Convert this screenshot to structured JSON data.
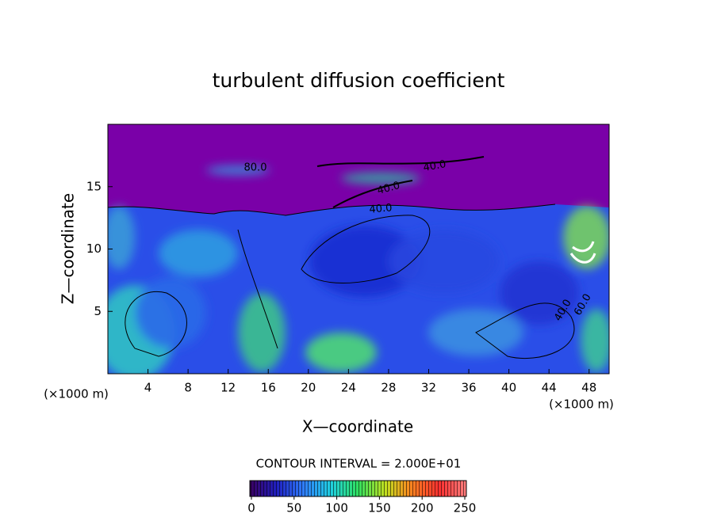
{
  "chart_data": {
    "type": "contour",
    "title": "turbulent diffusion coefficient",
    "x_label": "X—coordinate",
    "y_label": "Z—coordinate",
    "x_unit": "(×1000 m)",
    "y_unit": "(×1000 m)",
    "xlim": [
      0,
      50
    ],
    "xticks": [
      4,
      8,
      12,
      16,
      20,
      24,
      28,
      32,
      36,
      40,
      44,
      48
    ],
    "ylim": [
      0,
      20
    ],
    "yticks": [
      5,
      10,
      15
    ],
    "contour_labels": [
      "40.0",
      "40.0",
      "40.0",
      "40.0",
      "60.0",
      "80.0"
    ],
    "contour_interval_label": "CONTOUR INTERVAL = 2.000E+01",
    "colorbar": {
      "lim": [
        0,
        250
      ],
      "ticks": [
        0,
        50,
        100,
        150,
        200,
        250
      ],
      "colors": [
        "#3a0060",
        "#2020c0",
        "#2f7fff",
        "#20d0e0",
        "#30e060",
        "#c0e020",
        "#ff8020",
        "#ff3030",
        "#ff8080"
      ]
    }
  }
}
